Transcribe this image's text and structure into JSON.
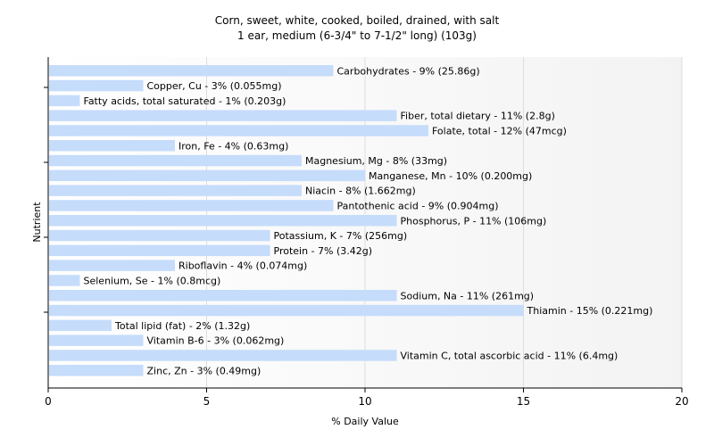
{
  "chart_data": {
    "type": "bar",
    "orientation": "horizontal",
    "title": "Corn, sweet, white, cooked, boiled, drained, with salt",
    "subtitle": "1 ear, medium (6-3/4\" to 7-1/2\" long) (103g)",
    "xlabel": "% Daily Value",
    "ylabel": "Nutrient",
    "xlim": [
      0,
      20
    ],
    "xticks": [
      0,
      5,
      10,
      15,
      20
    ],
    "grid": true,
    "bar_color": "#c6dcfb",
    "categories": [
      "Carbohydrates",
      "Copper, Cu",
      "Fatty acids, total saturated",
      "Fiber, total dietary",
      "Folate, total",
      "Iron, Fe",
      "Magnesium, Mg",
      "Manganese, Mn",
      "Niacin",
      "Pantothenic acid",
      "Phosphorus, P",
      "Potassium, K",
      "Protein",
      "Riboflavin",
      "Selenium, Se",
      "Sodium, Na",
      "Thiamin",
      "Total lipid (fat)",
      "Vitamin B-6",
      "Vitamin C, total ascorbic acid",
      "Zinc, Zn"
    ],
    "values": [
      9,
      3,
      1,
      11,
      12,
      4,
      8,
      10,
      8,
      9,
      11,
      7,
      7,
      4,
      1,
      11,
      15,
      2,
      3,
      11,
      3
    ],
    "data_labels": [
      "Carbohydrates - 9% (25.86g)",
      "Copper, Cu - 3% (0.055mg)",
      "Fatty acids, total saturated - 1% (0.203g)",
      "Fiber, total dietary - 11% (2.8g)",
      "Folate, total - 12% (47mcg)",
      "Iron, Fe - 4% (0.63mg)",
      "Magnesium, Mg - 8% (33mg)",
      "Manganese, Mn - 10% (0.200mg)",
      "Niacin - 8% (1.662mg)",
      "Pantothenic acid - 9% (0.904mg)",
      "Phosphorus, P - 11% (106mg)",
      "Potassium, K - 7% (256mg)",
      "Protein - 7% (3.42g)",
      "Riboflavin - 4% (0.074mg)",
      "Selenium, Se - 1% (0.8mcg)",
      "Sodium, Na - 11% (261mg)",
      "Thiamin - 15% (0.221mg)",
      "Total lipid (fat) - 2% (1.32g)",
      "Vitamin B-6 - 3% (0.062mg)",
      "Vitamin C, total ascorbic acid - 11% (6.4mg)",
      "Zinc, Zn - 3% (0.49mg)"
    ]
  }
}
